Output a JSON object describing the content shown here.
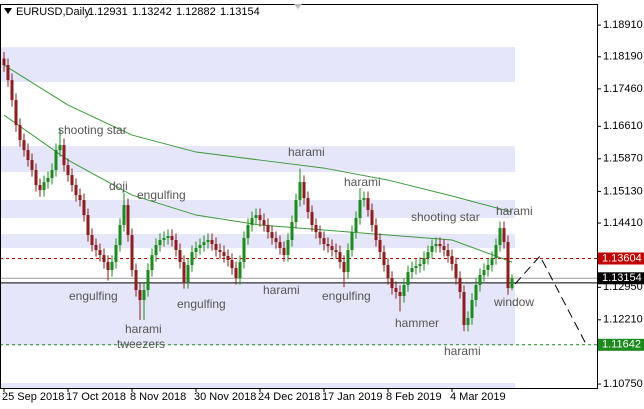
{
  "chart_data": {
    "type": "candlestick",
    "title": "EURUSD,Daily",
    "up_color": "#1c8a1c",
    "down_color": "#8b1e1e",
    "candles": {
      "open": [
        1.1815,
        1.18001,
        1.1766,
        1.17205,
        1.16637,
        1.16296,
        1.16069,
        1.15842,
        1.15615,
        1.15274,
        1.1516,
        1.15342,
        1.15433,
        1.15615,
        1.16069,
        1.16183,
        1.15728,
        1.15501,
        1.15274,
        1.15046,
        1.14933,
        1.14592,
        1.14137,
        1.1391,
        1.13796,
        1.13683,
        1.13524,
        1.13342,
        1.13524,
        1.1391,
        1.14365,
        1.14819,
        1.14137,
        1.13342,
        1.12887,
        1.1266,
        1.12887,
        1.13342,
        1.13683,
        1.1391,
        1.14024,
        1.14069,
        1.14115,
        1.14024,
        1.13796,
        1.13524,
        1.13069,
        1.13455,
        1.13751,
        1.13842,
        1.1391,
        1.13978,
        1.14024,
        1.13933,
        1.13796,
        1.13751,
        1.1366,
        1.13569,
        1.13387,
        1.1316,
        1.13524,
        1.14069,
        1.14365,
        1.14524,
        1.14592,
        1.14478,
        1.14365,
        1.14205,
        1.14069,
        1.13978,
        1.13842,
        1.13683,
        1.14024,
        1.14433,
        1.14933,
        1.15342,
        1.14978,
        1.1466,
        1.14365,
        1.14205,
        1.14069,
        1.13933,
        1.13887,
        1.13796,
        1.13751,
        1.13524,
        1.13296,
        1.13796,
        1.14205,
        1.14524,
        1.14933,
        1.14978,
        1.14705,
        1.14365,
        1.14024,
        1.13751,
        1.13455,
        1.1316,
        1.12933,
        1.12842,
        1.12751,
        1.13001,
        1.13296,
        1.13387,
        1.13433,
        1.13478,
        1.13615,
        1.13751,
        1.13887,
        1.13933,
        1.13887,
        1.13796,
        1.1366,
        1.13478,
        1.1316,
        1.12842,
        1.12092,
        1.12251,
        1.1266,
        1.13001,
        1.13228,
        1.13342,
        1.13455,
        1.13615,
        1.1391,
        1.14296,
        1.13978,
        1.12931
      ],
      "high": [
        1.183,
        1.18151,
        1.1781,
        1.17355,
        1.16787,
        1.16446,
        1.16219,
        1.15992,
        1.15765,
        1.15424,
        1.15492,
        1.15583,
        1.15765,
        1.16219,
        1.1655,
        1.16333,
        1.15878,
        1.15651,
        1.15424,
        1.15196,
        1.15083,
        1.14742,
        1.14287,
        1.1406,
        1.13946,
        1.13833,
        1.13674,
        1.13674,
        1.1406,
        1.14515,
        1.151,
        1.14969,
        1.14287,
        1.13492,
        1.13037,
        1.13037,
        1.13492,
        1.13833,
        1.1406,
        1.14174,
        1.14219,
        1.14265,
        1.14265,
        1.14174,
        1.13946,
        1.13674,
        1.13605,
        1.13901,
        1.13992,
        1.1406,
        1.14128,
        1.14174,
        1.14174,
        1.14083,
        1.13946,
        1.13901,
        1.1381,
        1.13719,
        1.13537,
        1.13674,
        1.14219,
        1.14515,
        1.14674,
        1.14742,
        1.14742,
        1.14628,
        1.14515,
        1.14355,
        1.14219,
        1.14128,
        1.13992,
        1.14174,
        1.14583,
        1.15083,
        1.1565,
        1.15492,
        1.15128,
        1.1481,
        1.14515,
        1.14355,
        1.14219,
        1.14083,
        1.14037,
        1.13946,
        1.13901,
        1.13674,
        1.13946,
        1.14355,
        1.14674,
        1.152,
        1.15128,
        1.15128,
        1.14855,
        1.14515,
        1.14174,
        1.13901,
        1.13605,
        1.1331,
        1.13083,
        1.12992,
        1.13151,
        1.13446,
        1.13537,
        1.13583,
        1.13628,
        1.13765,
        1.13901,
        1.14037,
        1.14083,
        1.14083,
        1.14037,
        1.13946,
        1.1381,
        1.13628,
        1.1331,
        1.12992,
        1.12401,
        1.1281,
        1.13151,
        1.13378,
        1.13492,
        1.13605,
        1.13765,
        1.1406,
        1.14446,
        1.14446,
        1.14128,
        1.13242
      ],
      "low": [
        1.1785,
        1.1751,
        1.17055,
        1.16487,
        1.16146,
        1.15919,
        1.15692,
        1.15465,
        1.15124,
        1.1501,
        1.1501,
        1.15192,
        1.15283,
        1.15465,
        1.15919,
        1.15578,
        1.15351,
        1.15124,
        1.14896,
        1.14783,
        1.14442,
        1.13987,
        1.1376,
        1.13646,
        1.13533,
        1.13374,
        1.131,
        1.13192,
        1.13374,
        1.1376,
        1.14215,
        1.13987,
        1.13192,
        1.12737,
        1.1221,
        1.1221,
        1.12737,
        1.13192,
        1.13533,
        1.1376,
        1.13874,
        1.13919,
        1.13874,
        1.13646,
        1.13374,
        1.12919,
        1.12919,
        1.13305,
        1.13601,
        1.13692,
        1.1376,
        1.13828,
        1.13783,
        1.13646,
        1.13601,
        1.1351,
        1.13419,
        1.13237,
        1.1301,
        1.1301,
        1.13374,
        1.13919,
        1.14215,
        1.14374,
        1.14328,
        1.14215,
        1.14055,
        1.13919,
        1.13828,
        1.13692,
        1.13533,
        1.13533,
        1.13874,
        1.14283,
        1.14783,
        1.14828,
        1.1451,
        1.14215,
        1.14055,
        1.13919,
        1.13783,
        1.13737,
        1.13646,
        1.13601,
        1.13374,
        1.1295,
        1.13146,
        1.13646,
        1.14055,
        1.14374,
        1.14783,
        1.14555,
        1.14215,
        1.13874,
        1.13601,
        1.13305,
        1.1301,
        1.12783,
        1.12692,
        1.124,
        1.12601,
        1.12851,
        1.13146,
        1.13237,
        1.13283,
        1.13328,
        1.13465,
        1.13601,
        1.13737,
        1.13737,
        1.13646,
        1.1351,
        1.13328,
        1.1301,
        1.12692,
        1.1195,
        1.1195,
        1.12101,
        1.1251,
        1.12851,
        1.13078,
        1.13192,
        1.13305,
        1.13465,
        1.1376,
        1.13828,
        1.12781,
        1.12882
      ],
      "close": [
        1.18001,
        1.1766,
        1.17205,
        1.16637,
        1.16296,
        1.16069,
        1.15842,
        1.15615,
        1.15274,
        1.1516,
        1.15342,
        1.15433,
        1.15615,
        1.16069,
        1.16183,
        1.15728,
        1.15501,
        1.15274,
        1.15046,
        1.14933,
        1.14592,
        1.14137,
        1.1391,
        1.13796,
        1.13683,
        1.13524,
        1.13342,
        1.13524,
        1.1391,
        1.14365,
        1.14819,
        1.14137,
        1.13342,
        1.12887,
        1.1266,
        1.12887,
        1.13342,
        1.13683,
        1.1391,
        1.14024,
        1.14069,
        1.14115,
        1.14024,
        1.13796,
        1.13524,
        1.13069,
        1.13455,
        1.13751,
        1.13842,
        1.1391,
        1.13978,
        1.14024,
        1.13933,
        1.13796,
        1.13751,
        1.1366,
        1.13569,
        1.13387,
        1.1316,
        1.13524,
        1.14069,
        1.14365,
        1.14524,
        1.14592,
        1.14478,
        1.14365,
        1.14205,
        1.14069,
        1.13978,
        1.13842,
        1.13683,
        1.14024,
        1.14433,
        1.14933,
        1.15342,
        1.14978,
        1.1466,
        1.14365,
        1.14205,
        1.14069,
        1.13933,
        1.13887,
        1.13796,
        1.13751,
        1.13524,
        1.13296,
        1.13796,
        1.14205,
        1.14524,
        1.14933,
        1.14978,
        1.14705,
        1.14365,
        1.14024,
        1.13751,
        1.13455,
        1.1316,
        1.12933,
        1.12842,
        1.12751,
        1.13001,
        1.13296,
        1.13387,
        1.13433,
        1.13478,
        1.13615,
        1.13751,
        1.13887,
        1.13933,
        1.13887,
        1.13796,
        1.1366,
        1.13478,
        1.1316,
        1.12842,
        1.12092,
        1.12251,
        1.1266,
        1.13001,
        1.13228,
        1.13342,
        1.13455,
        1.13615,
        1.1391,
        1.14296,
        1.13978,
        1.12931,
        1.13154
      ]
    },
    "moving_averages": [
      {
        "color": "#3c9a3c",
        "x": [
          0,
          16,
          32,
          48,
          64,
          80,
          96,
          112,
          127
        ],
        "values": [
          1.18001,
          1.17092,
          1.1641,
          1.16024,
          1.15842,
          1.1566,
          1.15387,
          1.15024,
          1.1466
        ]
      },
      {
        "color": "#3c9a3c",
        "x": [
          0,
          16,
          32,
          48,
          64,
          80,
          96,
          112,
          127
        ],
        "values": [
          1.16865,
          1.15842,
          1.15046,
          1.14592,
          1.14365,
          1.14251,
          1.14137,
          1.14024,
          1.13524
        ]
      }
    ],
    "zones": [
      [
        1.17615,
        1.1841
      ],
      [
        1.15569,
        1.1616
      ],
      [
        1.14524,
        1.14933
      ],
      [
        1.13842,
        1.1416
      ],
      [
        1.11637,
        1.13046
      ],
      [
        1.1066,
        1.10773
      ]
    ],
    "zone_color": "#e6e6fa",
    "levels": [
      {
        "value": 1.1305,
        "color": "#000000"
      },
      {
        "value": 1.13154,
        "color": "#9a9a9a",
        "tag_color": "#000000"
      },
      {
        "value": 1.13604,
        "color": "#c00000",
        "dashed": true,
        "tag_color": "#c00000"
      },
      {
        "value": 1.11642,
        "color": "#1c8a1c",
        "dashed": true,
        "tag_color": "#1c8a1c"
      }
    ],
    "annotations": [
      "shooting star",
      "doji",
      "engulfing",
      "harami",
      "harami",
      "shooting star",
      "harami",
      "engulfing",
      "harami",
      "tweezers",
      "engulfing",
      "harami",
      "engulfing",
      "hammer",
      "harami",
      "window"
    ],
    "xlim": [
      -1,
      148.25
    ],
    "xticks": [
      {
        "value": 0,
        "label": "25 Sep 2018"
      },
      {
        "value": 16,
        "label": "17 Oct 2018"
      },
      {
        "value": 32,
        "label": "8 Nov 2018"
      },
      {
        "value": 48,
        "label": "30 Nov 2018"
      },
      {
        "value": 64,
        "label": "24 Dec 2018"
      },
      {
        "value": 80,
        "label": "17 Jan 2019"
      },
      {
        "value": 96,
        "label": "8 Feb 2019"
      },
      {
        "value": 112,
        "label": "4 Mar 2019"
      }
    ],
    "ylim": [
      1.1066,
      1.1939
    ],
    "yticks": [
      {
        "value": 1.1891,
        "label": "1.18910"
      },
      {
        "value": 1.1819,
        "label": "1.18190"
      },
      {
        "value": 1.1746,
        "label": "1.17460"
      },
      {
        "value": 1.1661,
        "label": "1.16610"
      },
      {
        "value": 1.1587,
        "label": "1.15870"
      },
      {
        "value": 1.1513,
        "label": "1.15130"
      },
      {
        "value": 1.1441,
        "label": "1.14410"
      },
      {
        "value": 1.1295,
        "label": "1.12950"
      },
      {
        "value": 1.1221,
        "label": "1.12210"
      },
      {
        "value": 1.1075,
        "label": "1.10750"
      }
    ]
  }
}
